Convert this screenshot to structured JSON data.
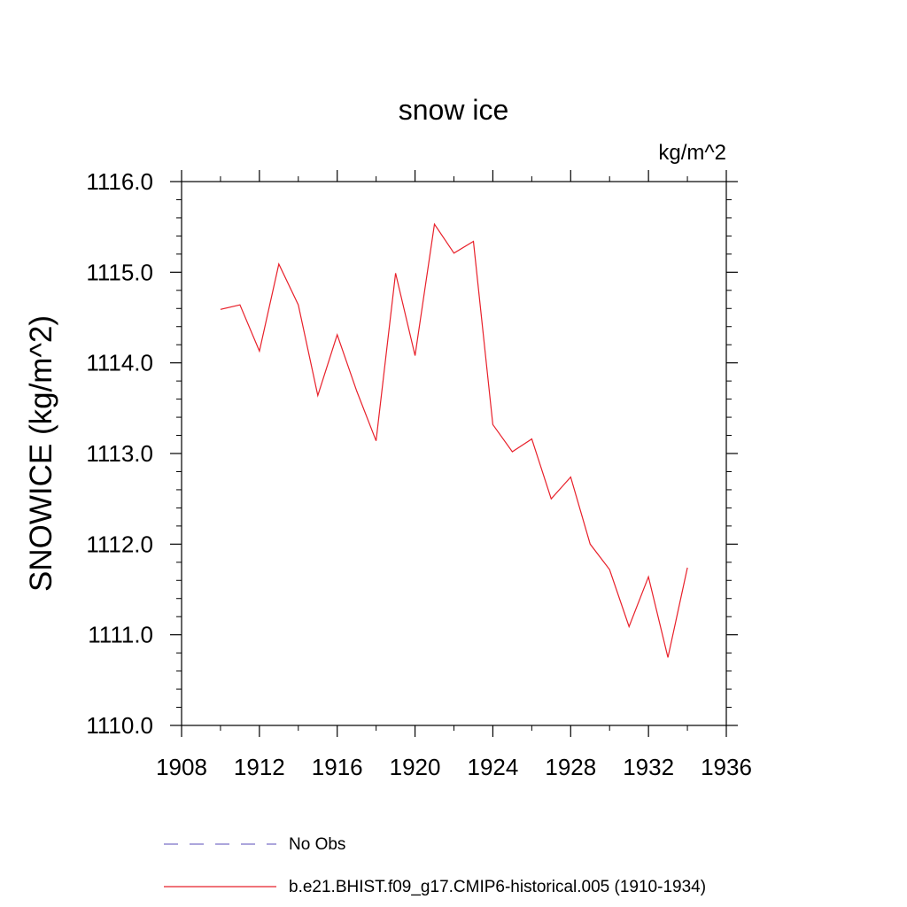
{
  "chart_data": {
    "type": "line",
    "title": "snow ice",
    "units": "kg/m^2",
    "ylabel": "SNOWICE  (kg/m^2)",
    "xlabel": "",
    "xlim": [
      1908,
      1936
    ],
    "ylim": [
      1110.0,
      1116.0
    ],
    "x_ticks": [
      1908,
      1912,
      1916,
      1920,
      1924,
      1928,
      1932,
      1936
    ],
    "x_tick_labels": [
      "1908",
      "1912",
      "1916",
      "1920",
      "1924",
      "1928",
      "1932",
      "1936"
    ],
    "y_ticks": [
      1110.0,
      1111.0,
      1112.0,
      1113.0,
      1114.0,
      1115.0,
      1116.0
    ],
    "y_tick_labels": [
      "1110.0",
      "1111.0",
      "1112.0",
      "1113.0",
      "1114.0",
      "1115.0",
      "1116.0"
    ],
    "grid": false,
    "legend_position": "bottom",
    "series": [
      {
        "name": "No Obs",
        "color": "#7b72c6",
        "dash": "dashed",
        "x": [],
        "values": []
      },
      {
        "name": "b.e21.BHIST.f09_g17.CMIP6-historical.005 (1910-1934)",
        "color": "#e8202a",
        "dash": "solid",
        "x": [
          1910,
          1911,
          1912,
          1913,
          1914,
          1915,
          1916,
          1917,
          1918,
          1919,
          1920,
          1921,
          1922,
          1923,
          1924,
          1925,
          1926,
          1927,
          1928,
          1929,
          1930,
          1931,
          1932,
          1933,
          1934
        ],
        "values": [
          1114.59,
          1114.64,
          1114.13,
          1115.09,
          1114.64,
          1113.64,
          1114.31,
          1113.69,
          1113.14,
          1114.99,
          1114.08,
          1115.53,
          1115.21,
          1115.34,
          1113.32,
          1113.02,
          1113.16,
          1112.5,
          1112.74,
          1112.0,
          1111.72,
          1111.09,
          1111.64,
          1110.75,
          1111.74
        ]
      }
    ]
  }
}
